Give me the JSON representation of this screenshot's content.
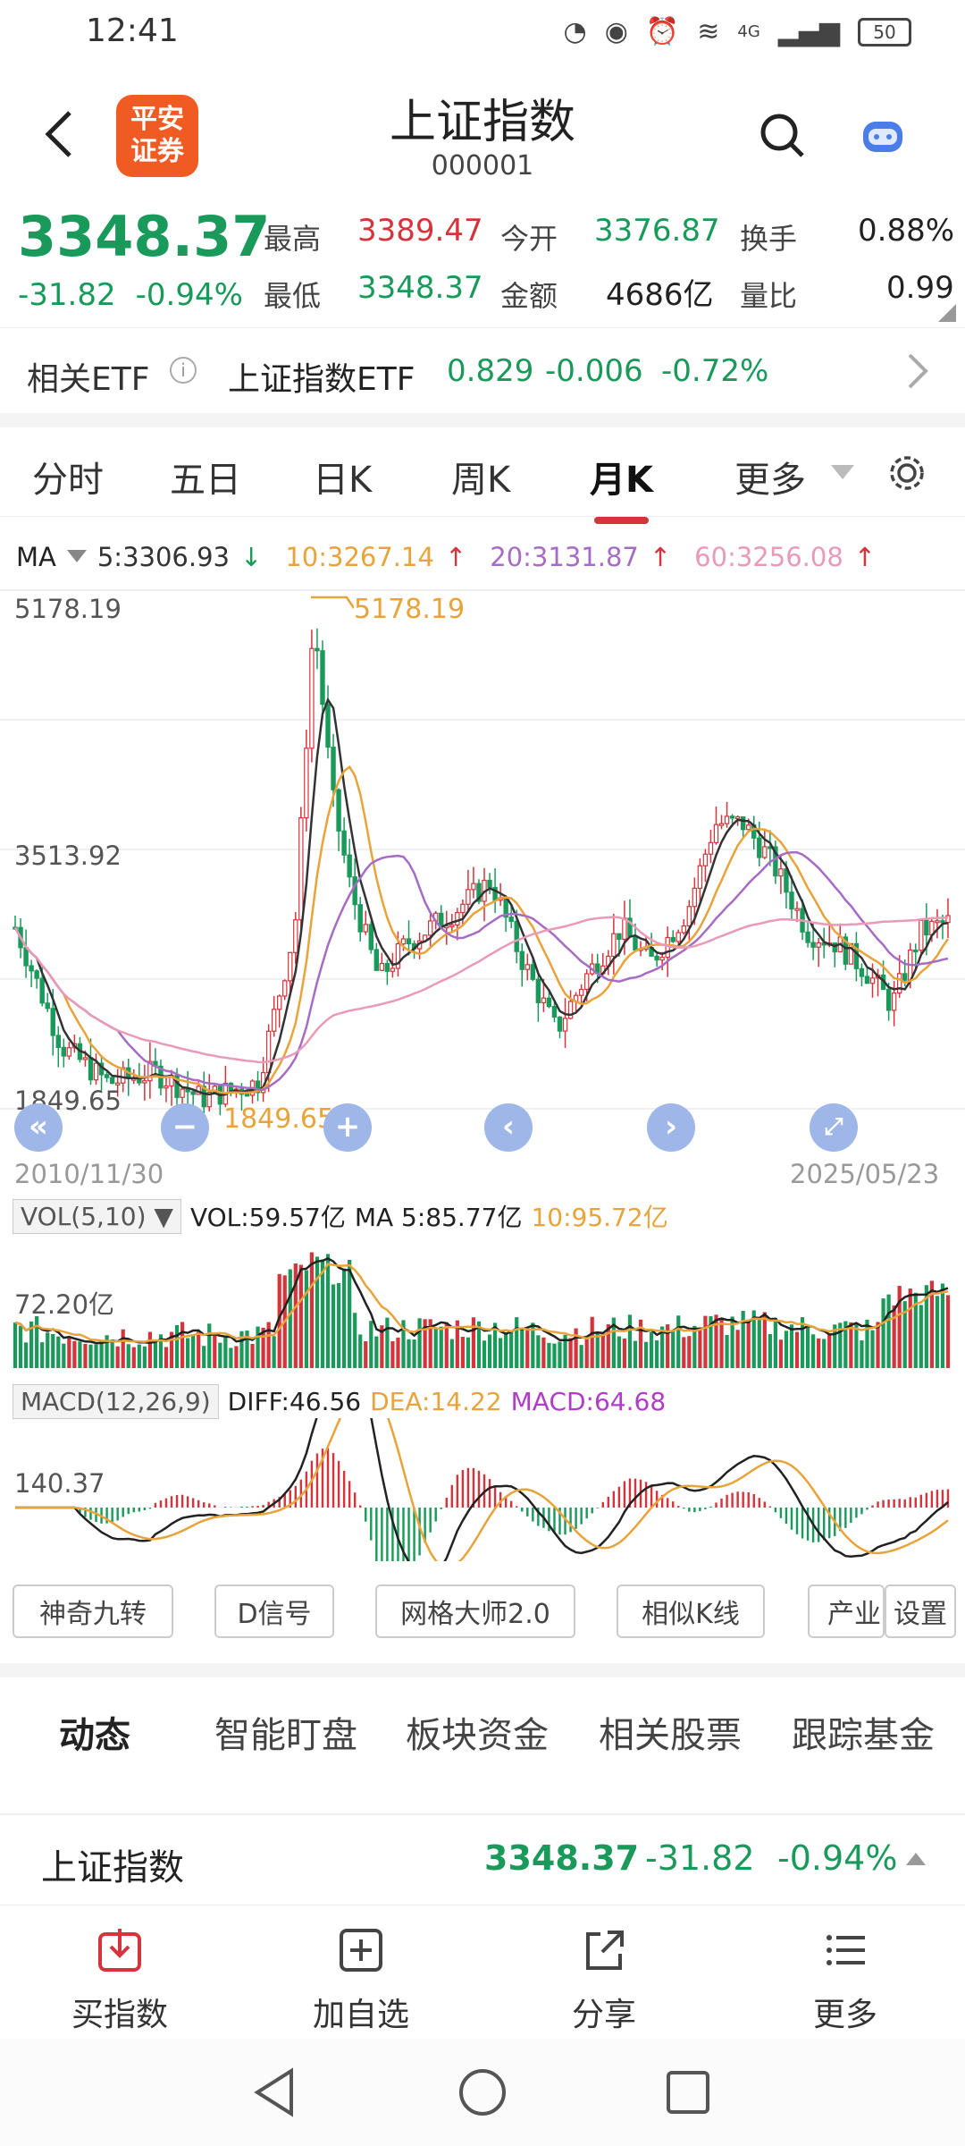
{
  "status_bar": {
    "time": "12:41",
    "battery": "50",
    "net": "4G"
  },
  "header": {
    "logo_line1": "平安",
    "logo_line2": "证券",
    "title": "上证指数",
    "code": "000001"
  },
  "quote": {
    "price": "3348.37",
    "change": "-31.82",
    "change_pct": "-0.94%",
    "high_label": "最高",
    "high": "3389.47",
    "low_label": "最低",
    "low": "3348.37",
    "open_label": "今开",
    "open": "3376.87",
    "amount_label": "金额",
    "amount": "4686亿",
    "turnover_label": "换手",
    "turnover": "0.88%",
    "vol_ratio_label": "量比",
    "vol_ratio": "0.99"
  },
  "etf": {
    "label": "相关ETF",
    "info_icon": "i",
    "name": "上证指数ETF",
    "price": "0.829",
    "change": "-0.006",
    "change_pct": "-0.72%"
  },
  "tabs": [
    "分时",
    "五日",
    "日K",
    "周K",
    "月K",
    "更多"
  ],
  "active_tab": "月K",
  "ma_legend": {
    "label": "MA",
    "ma5": "5:3306.93",
    "ma10": "10:3267.14",
    "ma20": "20:3131.87",
    "ma60": "60:3256.08",
    "ma5_arrow": "↓",
    "ma10_arrow": "↑",
    "ma20_arrow": "↑",
    "ma60_arrow": "↑"
  },
  "price_axis": {
    "top": "5178.19",
    "mid": "3513.92",
    "bottom": "1849.65"
  },
  "annotations": {
    "max": "5178.19",
    "min": "1849.65"
  },
  "date_range": {
    "start": "2010/11/30",
    "end": "2025/05/23"
  },
  "vol_legend": {
    "label": "VOL(5,10)",
    "vol": "VOL:59.57亿",
    "ma5": "MA 5:85.77亿",
    "ma10": "10:95.72亿",
    "axis": "72.20亿"
  },
  "macd_legend": {
    "label": "MACD(12,26,9)",
    "diff": "DIFF:46.56",
    "dea": "DEA:14.22",
    "macd": "MACD:64.68",
    "axis": "140.37"
  },
  "tools": [
    "神奇九转",
    "D信号",
    "网格大师2.0",
    "相似K线",
    "产业",
    "设置"
  ],
  "subtabs": [
    "动态",
    "智能盯盘",
    "板块资金",
    "相关股票",
    "跟踪基金"
  ],
  "active_subtab": "动态",
  "ticker": {
    "name": "上证指数",
    "price": "3348.37",
    "change": "-31.82",
    "change_pct": "-0.94%"
  },
  "bottom_nav": [
    "买指数",
    "加自选",
    "分享",
    "更多"
  ],
  "colors": {
    "up": "#d4343b",
    "down": "#1a9a5a",
    "ma5": "#333333",
    "ma10": "#e8a33a",
    "ma20": "#a66cc4",
    "ma60": "#e89ab8",
    "accent": "#d4343b"
  }
}
